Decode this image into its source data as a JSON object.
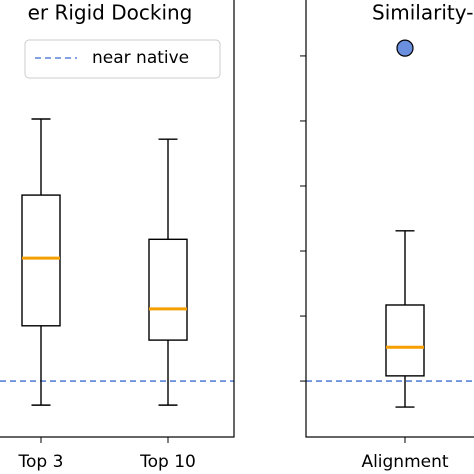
{
  "chart_data": [
    {
      "type": "box",
      "title": "er Rigid Docking",
      "categories": [
        "Top 3",
        "Top 10"
      ],
      "values": [
        {
          "whislo": -0.37,
          "q1": 0.85,
          "med": 1.89,
          "q3": 2.86,
          "whishi": 4.03
        },
        {
          "whislo": -0.37,
          "q1": 0.63,
          "med": 1.11,
          "q3": 2.18,
          "whishi": 3.72
        }
      ],
      "hline": {
        "name": "near native",
        "value": 0,
        "color": "#5b84d8"
      },
      "ylim": [
        -0.86,
        5.86
      ],
      "median_color": "#f5a000",
      "legend": "upper right"
    },
    {
      "type": "box",
      "title": "Similarity-",
      "categories": [
        "Alignment"
      ],
      "values": [
        {
          "whislo": -0.4,
          "q1": 0.08,
          "med": 0.52,
          "q3": 1.17,
          "whishi": 2.31,
          "fliers": [
            5.12
          ]
        }
      ],
      "hline": {
        "value": 0,
        "color": "#5b84d8"
      },
      "ylim": [
        -0.86,
        5.86
      ],
      "yticks": [
        0,
        1,
        2,
        3,
        4,
        5
      ],
      "median_color": "#f5a000",
      "flier_color": "#6a8fdf"
    }
  ]
}
